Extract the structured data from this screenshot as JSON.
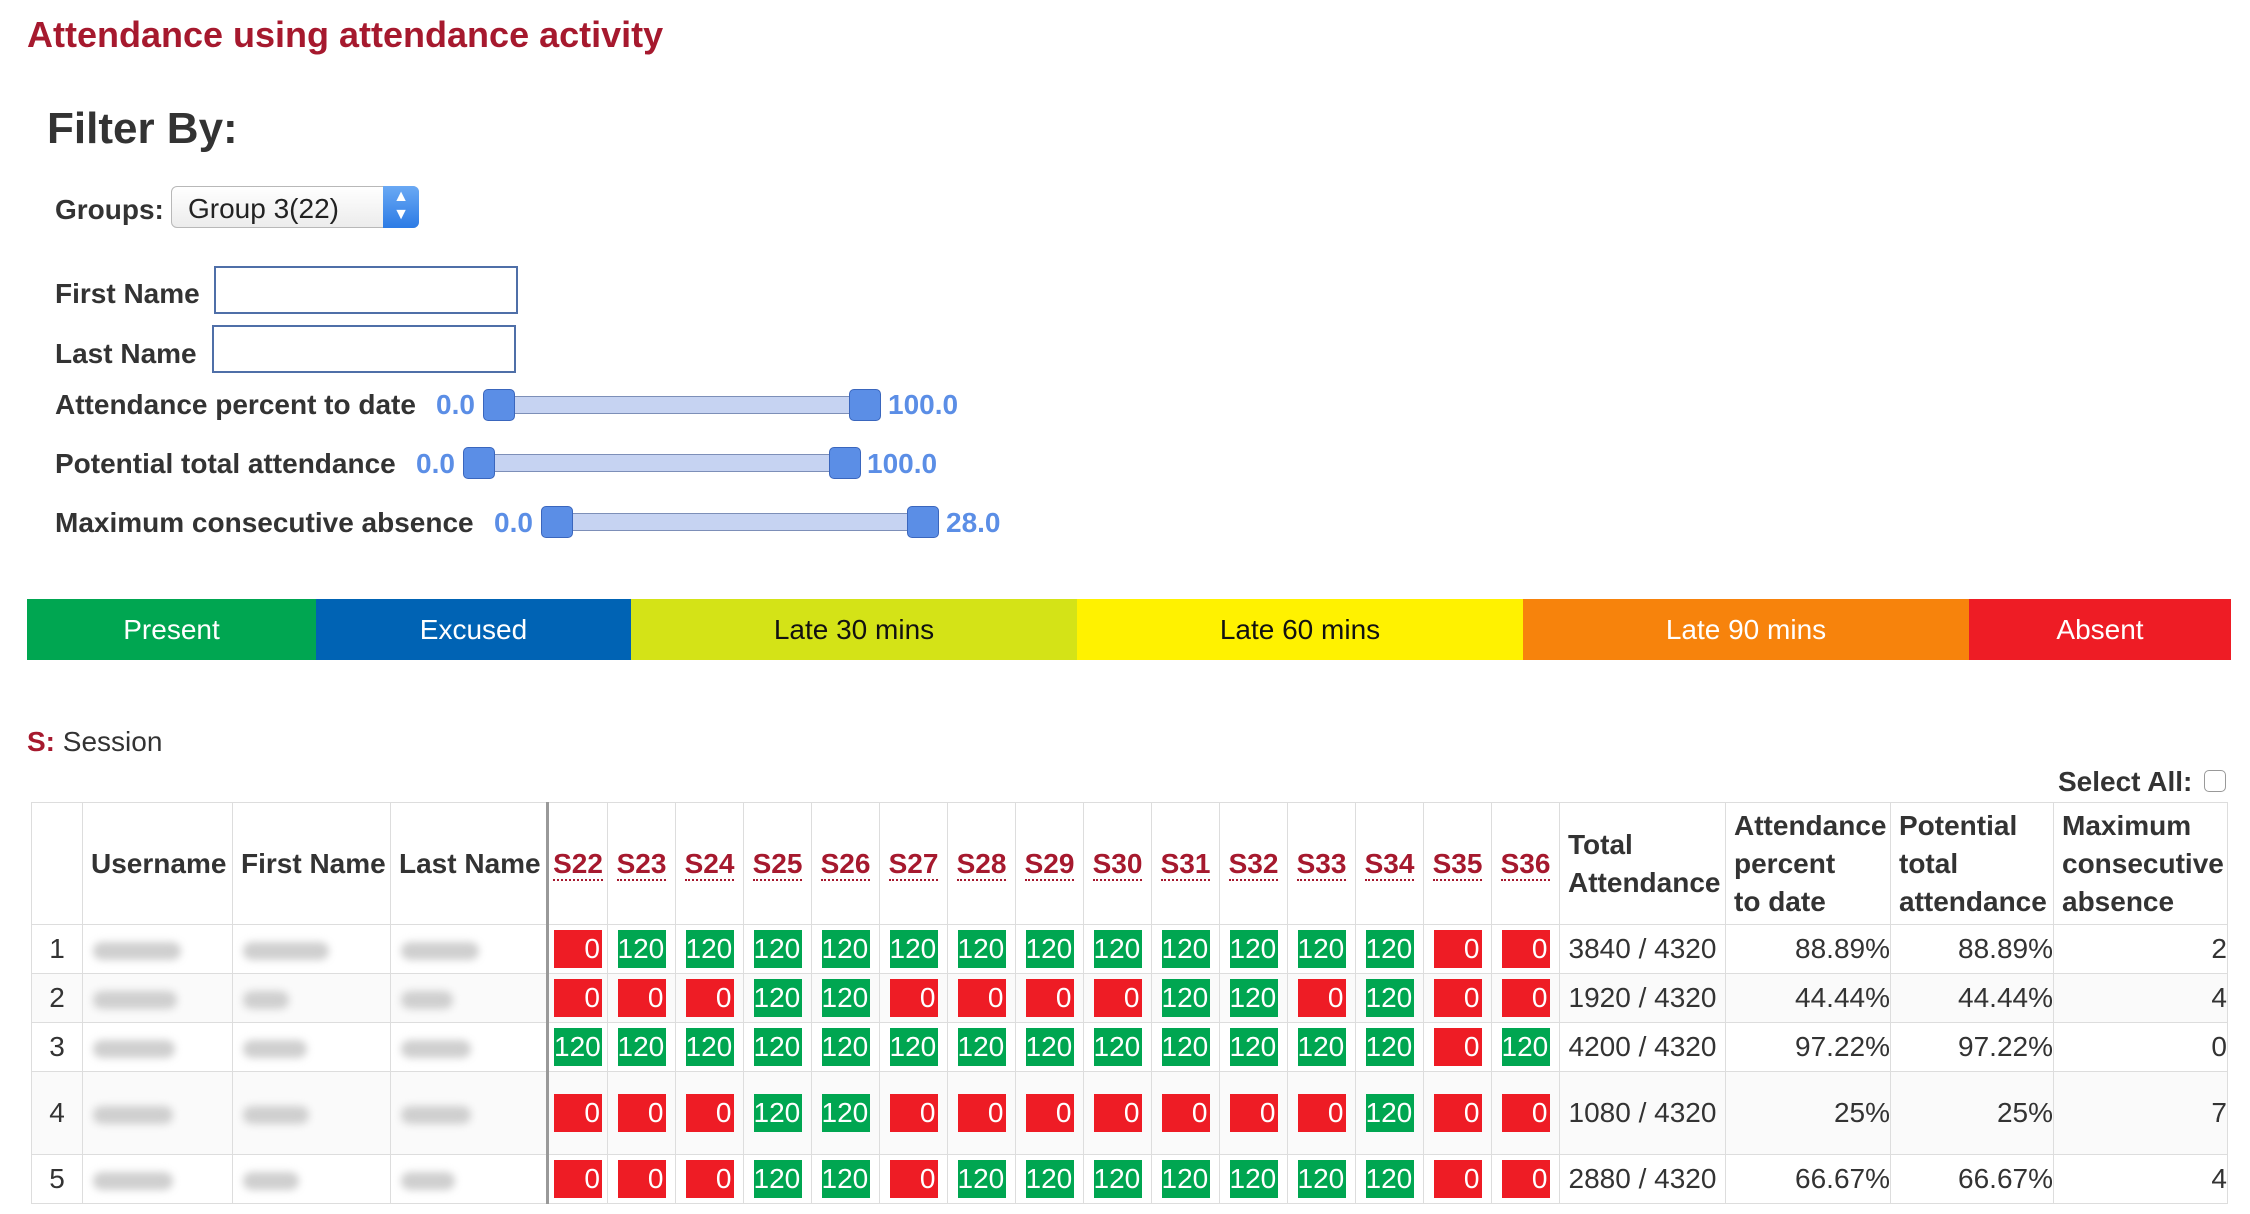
{
  "page": {
    "title": "Attendance using attendance activity"
  },
  "filter": {
    "heading": "Filter By:",
    "groups_label": "Groups:",
    "groups_value": "Group 3(22)",
    "first_name_label": "First Name",
    "first_name_value": "",
    "last_name_label": "Last Name",
    "last_name_value": "",
    "sliders": [
      {
        "label": "Attendance percent to date",
        "min_label": "0.0",
        "max_label": "100.0"
      },
      {
        "label": "Potential total attendance",
        "min_label": "0.0",
        "max_label": "100.0"
      },
      {
        "label": "Maximum consecutive absence",
        "min_label": "0.0",
        "max_label": "28.0"
      }
    ]
  },
  "legend": [
    {
      "label": "Present",
      "color": "#00a651",
      "text_color": "#ffffff"
    },
    {
      "label": "Excused",
      "color": "#0063b4",
      "text_color": "#ffffff"
    },
    {
      "label": "Late 30 mins",
      "color": "#d4e317",
      "text_color": "#111111"
    },
    {
      "label": "Late 60 mins",
      "color": "#fff200",
      "text_color": "#111111"
    },
    {
      "label": "Late 90 mins",
      "color": "#f7830c",
      "text_color": "#ffffff"
    },
    {
      "label": "Absent",
      "color": "#ee1c25",
      "text_color": "#ffffff"
    }
  ],
  "session_note": {
    "key": "S:",
    "text": "Session"
  },
  "select_all_label": "Select All:",
  "table": {
    "headers": {
      "username": "Username",
      "first_name": "First Name",
      "last_name": "Last Name",
      "total": [
        "Total",
        "Attendance"
      ],
      "att_pct": [
        "Attendance",
        "percent",
        "to date"
      ],
      "pot_total": [
        "Potential",
        "total",
        "attendance"
      ],
      "max_abs": [
        "Maximum",
        "consecutive",
        "absence"
      ]
    },
    "sessions": [
      "S22",
      "S23",
      "S24",
      "S25",
      "S26",
      "S27",
      "S28",
      "S29",
      "S30",
      "S31",
      "S32",
      "S33",
      "S34",
      "S35",
      "S36"
    ],
    "rows": [
      {
        "num": "1",
        "values": [
          "0",
          "120",
          "120",
          "120",
          "120",
          "120",
          "120",
          "120",
          "120",
          "120",
          "120",
          "120",
          "120",
          "0",
          "0"
        ],
        "total": "3840 / 4320",
        "att_pct": "88.89%",
        "pot_total": "88.89%",
        "max_abs": "2"
      },
      {
        "num": "2",
        "values": [
          "0",
          "0",
          "0",
          "120",
          "120",
          "0",
          "0",
          "0",
          "0",
          "120",
          "120",
          "0",
          "120",
          "0",
          "0"
        ],
        "total": "1920 / 4320",
        "att_pct": "44.44%",
        "pot_total": "44.44%",
        "max_abs": "4"
      },
      {
        "num": "3",
        "values": [
          "120",
          "120",
          "120",
          "120",
          "120",
          "120",
          "120",
          "120",
          "120",
          "120",
          "120",
          "120",
          "120",
          "0",
          "120"
        ],
        "total": "4200 / 4320",
        "att_pct": "97.22%",
        "pot_total": "97.22%",
        "max_abs": "0"
      },
      {
        "num": "4",
        "values": [
          "0",
          "0",
          "0",
          "120",
          "120",
          "0",
          "0",
          "0",
          "0",
          "0",
          "0",
          "0",
          "120",
          "0",
          "0"
        ],
        "total": "1080 / 4320",
        "att_pct": "25%",
        "pot_total": "25%",
        "max_abs": "7"
      },
      {
        "num": "5",
        "values": [
          "0",
          "0",
          "0",
          "120",
          "120",
          "0",
          "120",
          "120",
          "120",
          "120",
          "120",
          "120",
          "120",
          "0",
          "0"
        ],
        "total": "2880 / 4320",
        "att_pct": "66.67%",
        "pot_total": "66.67%",
        "max_abs": "4"
      }
    ]
  }
}
